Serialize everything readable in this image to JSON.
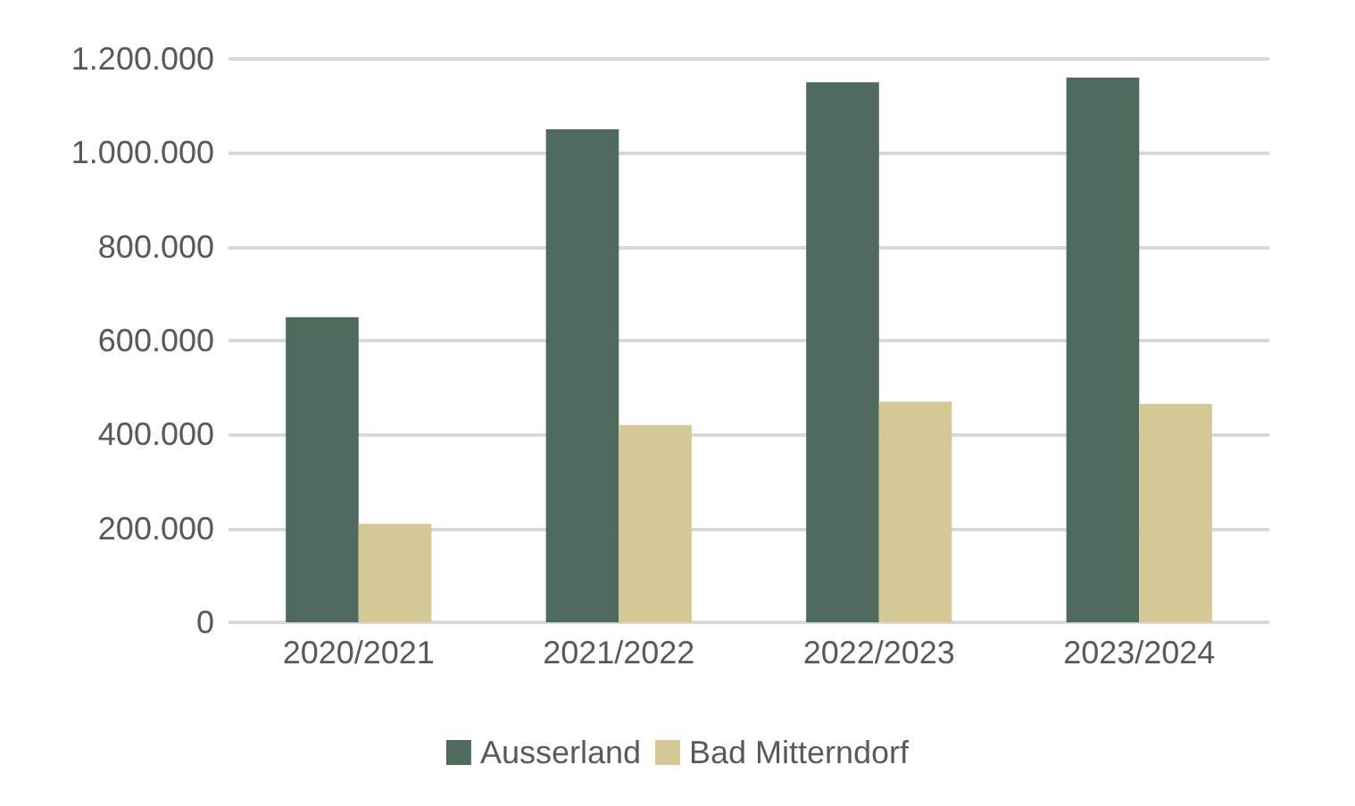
{
  "chart_data": {
    "type": "bar",
    "categories": [
      "2020/2021",
      "2021/2022",
      "2022/2023",
      "2023/2024"
    ],
    "series": [
      {
        "name": "Ausserland",
        "color": "#4e6b5e",
        "values": [
          650000,
          1050000,
          1150000,
          1160000
        ]
      },
      {
        "name": "Bad Mitterndorf",
        "color": "#d4c994",
        "values": [
          210000,
          420000,
          470000,
          465000
        ]
      }
    ],
    "ylim": [
      0,
      1200000
    ],
    "yticks": [
      {
        "value": 0,
        "label": "0"
      },
      {
        "value": 200000,
        "label": "200.000"
      },
      {
        "value": 400000,
        "label": "400.000"
      },
      {
        "value": 600000,
        "label": "600.000"
      },
      {
        "value": 800000,
        "label": "800.000"
      },
      {
        "value": 1000000,
        "label": "1.000.000"
      },
      {
        "value": 1200000,
        "label": "1.200.000"
      }
    ],
    "grid": "y",
    "legend": "bottom"
  }
}
